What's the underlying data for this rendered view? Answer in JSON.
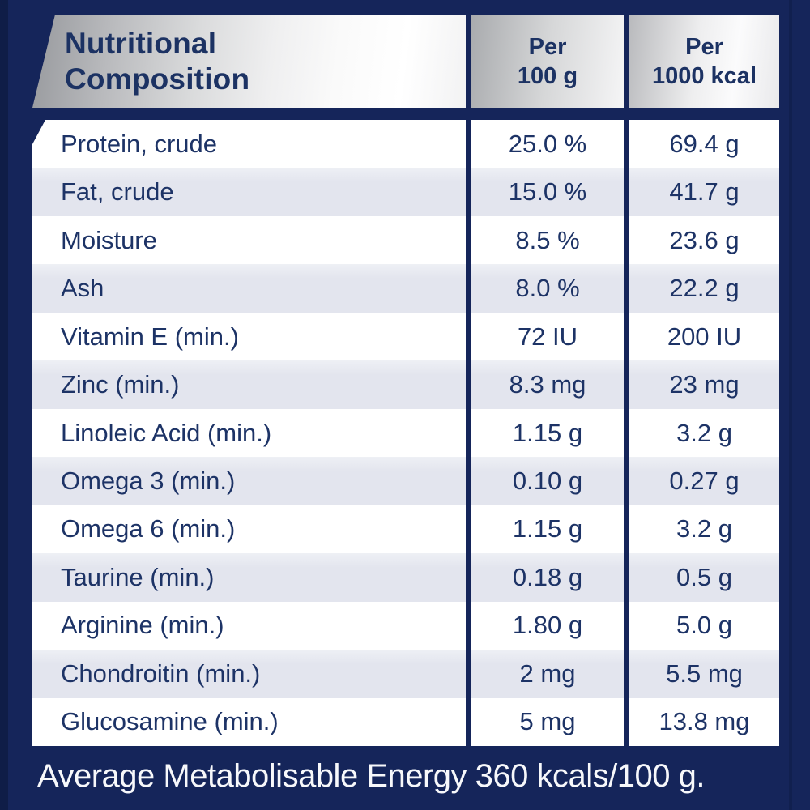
{
  "colors": {
    "panel_navy": "#15255a",
    "text_navy": "#1c3263",
    "stripe": "#e4e6ef",
    "silver_light": "#fafafa",
    "silver_dark": "#9a9c9f",
    "footer_text": "#f7f8fb"
  },
  "header": {
    "title_line1": "Nutritional",
    "title_line2": "Composition",
    "col_per_100g": {
      "line1": "Per",
      "line2": "100 g"
    },
    "col_per_1000kcal": {
      "line1": "Per",
      "line2": "1000 kcal"
    }
  },
  "rows": [
    {
      "label": "Protein, crude",
      "per_100g": "25.0 %",
      "per_1000kcal": "69.4 g"
    },
    {
      "label": "Fat, crude",
      "per_100g": "15.0 %",
      "per_1000kcal": "41.7 g"
    },
    {
      "label": "Moisture",
      "per_100g": "8.5 %",
      "per_1000kcal": "23.6 g"
    },
    {
      "label": "Ash",
      "per_100g": "8.0 %",
      "per_1000kcal": "22.2 g"
    },
    {
      "label": "Vitamin E (min.)",
      "per_100g": "72 IU",
      "per_1000kcal": "200 IU"
    },
    {
      "label": "Zinc (min.)",
      "per_100g": "8.3 mg",
      "per_1000kcal": "23 mg"
    },
    {
      "label": "Linoleic Acid (min.)",
      "per_100g": "1.15 g",
      "per_1000kcal": "3.2 g"
    },
    {
      "label": "Omega 3 (min.)",
      "per_100g": "0.10 g",
      "per_1000kcal": "0.27 g"
    },
    {
      "label": "Omega 6 (min.)",
      "per_100g": "1.15 g",
      "per_1000kcal": "3.2 g"
    },
    {
      "label": "Taurine (min.)",
      "per_100g": "0.18 g",
      "per_1000kcal": "0.5 g"
    },
    {
      "label": "Arginine (min.)",
      "per_100g": "1.80 g",
      "per_1000kcal": "5.0 g"
    },
    {
      "label": "Chondroitin (min.)",
      "per_100g": "2 mg",
      "per_1000kcal": "5.5 mg"
    },
    {
      "label": "Glucosamine (min.)",
      "per_100g": "5 mg",
      "per_1000kcal": "13.8 mg"
    }
  ],
  "footer": {
    "text": "Average Metabolisable Energy 360 kcals/100 g."
  }
}
